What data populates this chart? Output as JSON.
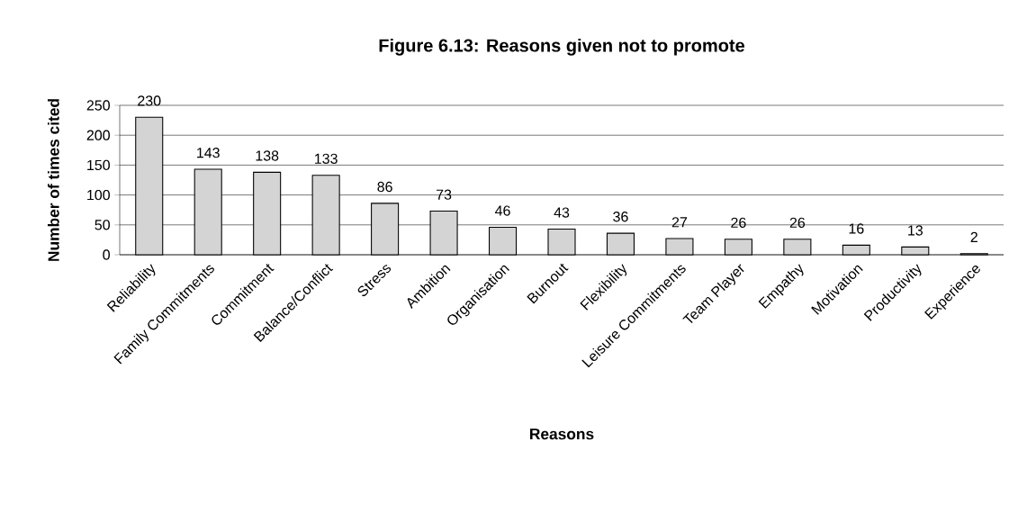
{
  "chart_data": {
    "type": "bar",
    "title": "Figure 6.13: Reasons given not to promote",
    "xlabel": "Reasons",
    "ylabel": "Number of times cited",
    "categories": [
      "Reliability",
      "Family Commitments",
      "Commitment",
      "Balance/Conflict",
      "Stress",
      "Ambition",
      "Organisation",
      "Burnout",
      "Flexibility",
      "Leisure Commitments",
      "Team Player",
      "Empathy",
      "Motivation",
      "Productivity",
      "Experience"
    ],
    "values": [
      230,
      143,
      138,
      133,
      86,
      73,
      46,
      43,
      36,
      27,
      26,
      26,
      16,
      13,
      2
    ],
    "color": "#d4d4d4",
    "ylim": [
      0,
      250
    ],
    "yticks": [
      0,
      50,
      100,
      150,
      200,
      250
    ],
    "grid": "y",
    "data_labels": true
  }
}
